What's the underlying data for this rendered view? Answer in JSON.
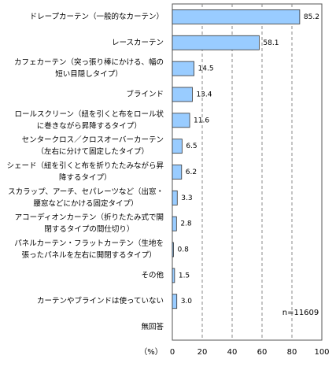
{
  "chart_data": {
    "type": "bar",
    "orientation": "horizontal",
    "categories": [
      [
        "ドレープカーテン（一般的なカーテン）"
      ],
      [
        "レースカーテン"
      ],
      [
        "カフェカーテン（突っ張り棒にかける、幅の",
        "短い目隠しタイプ）"
      ],
      [
        "ブラインド"
      ],
      [
        "ロールスクリーン（紐を引くと布をロール状",
        "に巻きながら昇降するタイプ）"
      ],
      [
        "センタークロス／クロスオーバーカーテン",
        "（左右に分けて固定したタイプ）"
      ],
      [
        "シェード（紐を引くと布を折りたたみながら昇",
        "降するタイプ）"
      ],
      [
        "スカラップ、アーチ、セパレーツなど（出窓・",
        "腰窓などにかける固定タイプ）"
      ],
      [
        "アコーディオンカーテン（折りたたみ式で開",
        "閉するタイプの間仕切り）"
      ],
      [
        "パネルカーテン・フラットカーテン（生地を",
        "張ったパネルを左右に開閉するタイプ）"
      ],
      [
        "その他"
      ],
      [
        "カーテンやブラインドは使っていない"
      ],
      [
        "無回答"
      ]
    ],
    "values": [
      85.2,
      58.1,
      14.5,
      13.4,
      11.6,
      6.5,
      6.2,
      3.3,
      2.8,
      0.8,
      1.5,
      3.0,
      null
    ],
    "value_labels": [
      "85.2",
      "58.1",
      "14.5",
      "13.4",
      "11.6",
      "6.5",
      "6.2",
      "3.3",
      "2.8",
      "0.8",
      "1.5",
      "3.0",
      null
    ],
    "color": "#99ccff",
    "xlim": [
      0,
      100
    ],
    "xticks": [
      0,
      20,
      40,
      60,
      80,
      100
    ],
    "x_axis_label": "（%）",
    "annotation": "n=11609",
    "grid": true
  }
}
